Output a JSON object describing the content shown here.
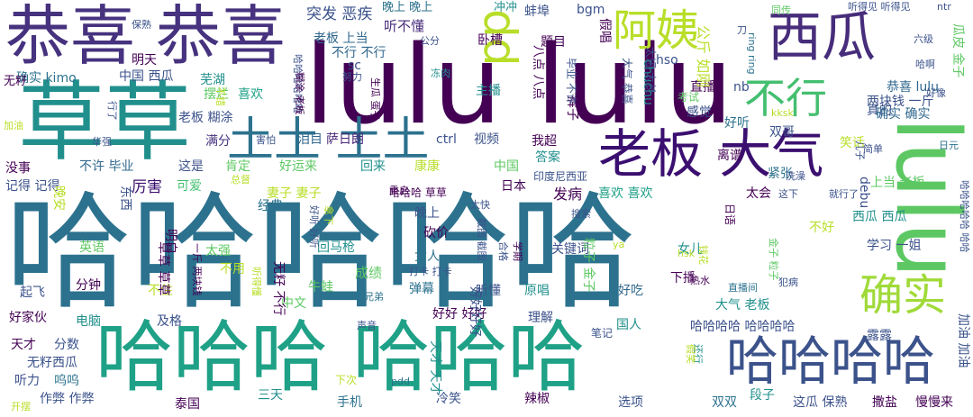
{
  "palette": {
    "dark_purple": "#440154",
    "indigo": "#3b528b",
    "teal": "#21908d",
    "dark_teal": "#2c728e",
    "green": "#5dc863",
    "lime": "#b8de29",
    "blue": "#31688e"
  },
  "words": [
    {
      "text": "哈哈哈哈哈",
      "color": "#2c728e"
    },
    {
      "text": "lulu lulu",
      "color": "#440154"
    },
    {
      "text": "哈哈哈 哈哈哈",
      "color": "#1fa187"
    },
    {
      "text": "草草",
      "color": "#21908d"
    },
    {
      "text": "恭喜 恭喜",
      "color": "#46327e"
    },
    {
      "text": "老板 大气",
      "color": "#3b0f70"
    },
    {
      "text": "lulu",
      "color": "#5dc863"
    },
    {
      "text": "哈哈哈哈",
      "color": "#3b528b"
    },
    {
      "text": "西瓜",
      "color": "#472d7b"
    },
    {
      "text": "土土 土土",
      "color": "#2c728e"
    },
    {
      "text": "阿姨",
      "color": "#b8de29"
    },
    {
      "text": "确实",
      "color": "#a0da39"
    },
    {
      "text": "不行",
      "color": "#44bf70"
    },
    {
      "text": "dd",
      "color": "#b8de29"
    },
    {
      "text": "突发 恶疾",
      "color": "#3b528b"
    },
    {
      "text": "听不懂",
      "color": "#472d7b"
    },
    {
      "text": "晚上 晚上",
      "color": "#2c728e"
    },
    {
      "text": "冲冲",
      "color": "#21908d"
    },
    {
      "text": "同传",
      "color": "#5dc863"
    },
    {
      "text": "听得见 听得见",
      "color": "#3b528b"
    },
    {
      "text": "不行 不行",
      "color": "#31688e"
    },
    {
      "text": "老板 上当",
      "color": "#31688e"
    },
    {
      "text": "确实 kimo",
      "color": "#2c728e"
    },
    {
      "text": "中国 西瓜",
      "color": "#3b528b"
    },
    {
      "text": "明天",
      "color": "#440154"
    },
    {
      "text": "无籽",
      "color": "#440154"
    },
    {
      "text": "摆烂",
      "color": "#5dc863"
    },
    {
      "text": "芜湖",
      "color": "#21908d"
    },
    {
      "text": "喜欢",
      "color": "#1fa187"
    },
    {
      "text": "老板 糊涂",
      "color": "#3b528b"
    },
    {
      "text": "满分",
      "color": "#46327e"
    },
    {
      "text": "泪目",
      "color": "#31688e"
    },
    {
      "text": "萨日朗",
      "color": "#482677"
    },
    {
      "text": "ctrl",
      "color": "#3b528b"
    },
    {
      "text": "视频",
      "color": "#3b528b"
    },
    {
      "text": "我超",
      "color": "#440154"
    },
    {
      "text": "答案",
      "color": "#21908d"
    },
    {
      "text": "好运来",
      "color": "#5dc863"
    },
    {
      "text": "回来",
      "color": "#21908d"
    },
    {
      "text": "中国",
      "color": "#5dc863"
    },
    {
      "text": "没事",
      "color": "#440154"
    },
    {
      "text": "不许 毕业",
      "color": "#31688e"
    },
    {
      "text": "这是",
      "color": "#3b528b"
    },
    {
      "text": "肯定",
      "color": "#5dc863"
    },
    {
      "text": "记得 记得",
      "color": "#3b528b"
    },
    {
      "text": "厉害",
      "color": "#3b0f70"
    },
    {
      "text": "可爱",
      "color": "#44bf70"
    },
    {
      "text": "妻子 妻子",
      "color": "#b8de29"
    },
    {
      "text": "康康",
      "color": "#b8de29"
    },
    {
      "text": "哈哈哈 草草",
      "color": "#440154"
    },
    {
      "text": "日本",
      "color": "#440154"
    },
    {
      "text": "发病",
      "color": "#440154"
    },
    {
      "text": "喜欢 喜欢",
      "color": "#1fa187"
    },
    {
      "text": "经典",
      "color": "#2c728e"
    },
    {
      "text": "晚上",
      "color": "#3b528b"
    },
    {
      "text": "砍价",
      "color": "#440154"
    },
    {
      "text": "女人",
      "color": "#2c728e"
    },
    {
      "text": "英语",
      "color": "#5dc863"
    },
    {
      "text": "太强",
      "color": "#5dc863"
    },
    {
      "text": "回马枪",
      "color": "#21908d"
    },
    {
      "text": "关键词",
      "color": "#3b528b"
    },
    {
      "text": "成绩",
      "color": "#5dc863"
    },
    {
      "text": "分钟",
      "color": "#440154"
    },
    {
      "text": "不用",
      "color": "#b8de29"
    },
    {
      "text": "不住",
      "color": "#b8de29"
    },
    {
      "text": "牛蛙",
      "color": "#5dc863"
    },
    {
      "text": "弹幕",
      "color": "#2c728e"
    },
    {
      "text": "听懂",
      "color": "#3b528b"
    },
    {
      "text": "原唱",
      "color": "#21908d"
    },
    {
      "text": "好吃",
      "color": "#31688e"
    },
    {
      "text": "起飞",
      "color": "#3b528b"
    },
    {
      "text": "好家伙",
      "color": "#440154"
    },
    {
      "text": "电脑",
      "color": "#21908d"
    },
    {
      "text": "及格",
      "color": "#3b528b"
    },
    {
      "text": "中文",
      "color": "#5dc863"
    },
    {
      "text": "好好 好好",
      "color": "#440154"
    },
    {
      "text": "理解",
      "color": "#3b528b"
    },
    {
      "text": "天才",
      "color": "#440154"
    },
    {
      "text": "分数",
      "color": "#3b528b"
    },
    {
      "text": "无籽西瓜",
      "color": "#3b528b"
    },
    {
      "text": "听力",
      "color": "#3b528b"
    },
    {
      "text": "呜呜",
      "color": "#2c728e"
    },
    {
      "text": "作弊 作弊",
      "color": "#3b528b"
    },
    {
      "text": "泰国",
      "color": "#440154"
    },
    {
      "text": "三天",
      "color": "#21908d"
    },
    {
      "text": "手机",
      "color": "#2c728e"
    },
    {
      "text": "冷笑",
      "color": "#3b528b"
    },
    {
      "text": "辣椒",
      "color": "#440154"
    },
    {
      "text": "选项",
      "color": "#3b528b"
    },
    {
      "text": "双双",
      "color": "#2c728e"
    },
    {
      "text": "段子",
      "color": "#21908d"
    },
    {
      "text": "这瓜 保熟",
      "color": "#3b528b"
    },
    {
      "text": "撒盐",
      "color": "#440154"
    },
    {
      "text": "慢慢来",
      "color": "#440154"
    },
    {
      "text": "哈哈哈哈 哈哈哈哈",
      "color": "#3b528b"
    },
    {
      "text": "大气 老板",
      "color": "#21908d"
    },
    {
      "text": "露露",
      "color": "#3b528b"
    },
    {
      "text": "下播",
      "color": "#440154"
    },
    {
      "text": "西瓜 西瓜",
      "color": "#21908d"
    },
    {
      "text": "学习 一姐",
      "color": "#3b528b"
    },
    {
      "text": "太会",
      "color": "#440154"
    },
    {
      "text": "上当 老板",
      "color": "#5dc863"
    },
    {
      "text": "紧张",
      "color": "#2c728e"
    },
    {
      "text": "离谱",
      "color": "#440154"
    },
    {
      "text": "笑话",
      "color": "#b8de29"
    },
    {
      "text": "双哥",
      "color": "#3b528b"
    },
    {
      "text": "好听",
      "color": "#2c728e"
    },
    {
      "text": "真的",
      "color": "#3b528b"
    },
    {
      "text": "确实 确实",
      "color": "#31688e"
    },
    {
      "text": "两块钱 一斤",
      "color": "#3b528b"
    },
    {
      "text": "恭喜 lulu",
      "color": "#31688e"
    },
    {
      "text": "感觉",
      "color": "#3b528b"
    },
    {
      "text": "直播",
      "color": "#440154"
    },
    {
      "text": "题目",
      "color": "#440154"
    },
    {
      "text": "bgm",
      "color": "#3b528b"
    },
    {
      "text": "蚌埠",
      "color": "#3b528b"
    },
    {
      "text": "卧槽",
      "color": "#440154"
    },
    {
      "text": "主播",
      "color": "#21908d"
    },
    {
      "text": "hso",
      "color": "#3b528b"
    },
    {
      "text": "不好",
      "color": "#b8de29"
    },
    {
      "text": "女儿",
      "color": "#21908d"
    },
    {
      "text": "就行了",
      "color": "#3b528b"
    },
    {
      "text": "这下",
      "color": "#3b528b"
    },
    {
      "text": "印度尼西亚",
      "color": "#3b528b"
    },
    {
      "text": "重启",
      "color": "#440154"
    },
    {
      "text": "太快",
      "color": "#3b528b"
    },
    {
      "text": "搜索",
      "color": "#3b528b"
    },
    {
      "text": "六级",
      "color": "#3b528b"
    },
    {
      "text": "简单",
      "color": "#3b528b"
    },
    {
      "text": "日元",
      "color": "#2c728e"
    },
    {
      "text": "好像",
      "color": "#3b528b"
    },
    {
      "text": "热水",
      "color": "#440154"
    },
    {
      "text": "犯病",
      "color": "#3b528b"
    },
    {
      "text": "直播间",
      "color": "#2c728e"
    },
    {
      "text": "打卡 打卡",
      "color": "#3b528b"
    },
    {
      "text": "兄弟",
      "color": "#2c728e"
    },
    {
      "text": "国人",
      "color": "#21908d"
    },
    {
      "text": "笔记",
      "color": "#3b528b"
    },
    {
      "text": "声音",
      "color": "#3b528b"
    },
    {
      "text": "pdd",
      "color": "#2c728e"
    },
    {
      "text": "下次",
      "color": "#b8de29"
    },
    {
      "text": "开摆",
      "color": "#b8de29"
    },
    {
      "text": "加油",
      "color": "#b8de29"
    },
    {
      "text": "保熟",
      "color": "#3b528b"
    },
    {
      "text": "华强",
      "color": "#3b528b"
    },
    {
      "text": "害怕",
      "color": "#3b528b"
    },
    {
      "text": "总督",
      "color": "#b8de29"
    },
    {
      "text": "努力",
      "color": "#3b528b"
    },
    {
      "text": "冻肉",
      "color": "#21908d"
    },
    {
      "text": "公分",
      "color": "#3b528b"
    },
    {
      "text": "刀",
      "color": "#3b528b"
    },
    {
      "text": "ya",
      "color": "#b8de29"
    },
    {
      "text": "考试",
      "color": "#5dc863"
    },
    {
      "text": "hsk",
      "color": "#b8de29"
    },
    {
      "text": "kksk",
      "color": "#b8de29"
    },
    {
      "text": "nb",
      "color": "#3b528b"
    },
    {
      "text": "ntr",
      "color": "#3b528b"
    },
    {
      "text": "哈啊",
      "color": "#3b528b"
    },
    {
      "text": "洗澡",
      "color": "#3b528b"
    },
    {
      "text": "chuchu",
      "color": "#21908d"
    },
    {
      "text": "哈哈哈哈哈哈",
      "color": "#3b528b"
    },
    {
      "text": "ring ring",
      "color": "#2c728e"
    },
    {
      "text": "debu",
      "color": "#3b528b"
    },
    {
      "text": "瓜皮 金子",
      "color": "#5dc863"
    },
    {
      "text": "八点 八点",
      "color": "#440154"
    },
    {
      "text": "裤子",
      "color": "#440154"
    },
    {
      "text": "公斤 如刚",
      "color": "#b8de29"
    },
    {
      "text": "无籽 不行",
      "color": "#440154"
    },
    {
      "text": "草草 草草",
      "color": "#440154"
    },
    {
      "text": "儿子",
      "color": "#3b528b"
    },
    {
      "text": "好好好好",
      "color": "#3b528b"
    },
    {
      "text": "明白",
      "color": "#440154"
    },
    {
      "text": "东西",
      "color": "#3b528b"
    },
    {
      "text": "一斤 两块钱",
      "color": "#440154"
    },
    {
      "text": "好听 好听",
      "color": "#3b528b"
    },
    {
      "text": "糊涂 老板",
      "color": "#440154"
    },
    {
      "text": "拿下",
      "color": "#b8de29"
    },
    {
      "text": "合格",
      "color": "#3b528b"
    },
    {
      "text": "截图 截图",
      "color": "#3b528b"
    },
    {
      "text": "哈哈哈哈哈 哈哈",
      "color": "#3b528b"
    },
    {
      "text": "粒子 金子",
      "color": "#5dc863"
    },
    {
      "text": "日语",
      "color": "#440154"
    },
    {
      "text": "金子 粒子",
      "color": "#5dc863"
    },
    {
      "text": "钱花",
      "color": "#b8de29"
    },
    {
      "text": "学期",
      "color": "#440154"
    },
    {
      "text": "天才 天才",
      "color": "#21908d"
    },
    {
      "text": "大气 恭喜",
      "color": "#3b528b"
    },
    {
      "text": "毕业 不许",
      "color": "#3b528b"
    },
    {
      "text": "太短 太长",
      "color": "#3b528b"
    },
    {
      "text": "假唱",
      "color": "#440154"
    },
    {
      "text": "还行",
      "color": "#21908d"
    },
    {
      "text": "假笑",
      "color": "#b8de29"
    },
    {
      "text": "加油 加油",
      "color": "#3b528b"
    },
    {
      "text": "晚安",
      "color": "#b8de29"
    },
    {
      "text": "听得懂",
      "color": "#b8de29"
    },
    {
      "text": "生瓜 蛋子",
      "color": "#440154"
    },
    {
      "text": "不错",
      "color": "#b8de29"
    },
    {
      "text": "行了",
      "color": "#3b528b"
    },
    {
      "text": "sc",
      "color": "#3b528b"
    }
  ]
}
